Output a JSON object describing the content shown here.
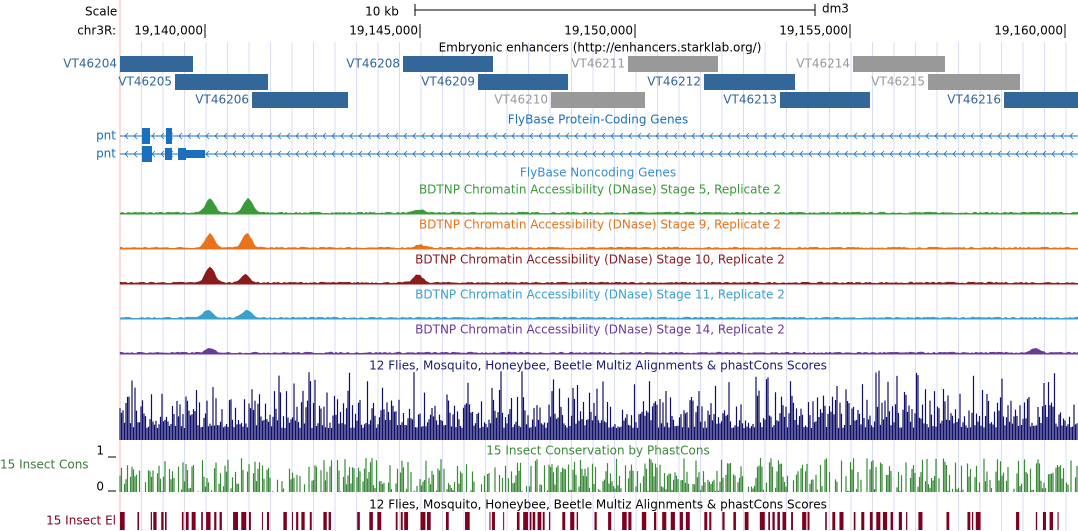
{
  "header": {
    "scale_label": "Scale",
    "ruler_label": "10 kb",
    "assembly": "dm3",
    "chrom_label": "chr3R:",
    "positions": [
      "19,140,000",
      "19,145,000",
      "19,150,000",
      "19,155,000",
      "19,160,000"
    ]
  },
  "tracks": {
    "enhancers": {
      "title": "Embryonic enhancers (http://enhancers.starklab.org/)",
      "items": [
        {
          "label": "VT46204",
          "color": "#336699"
        },
        {
          "label": "VT46205",
          "color": "#336699"
        },
        {
          "label": "VT46206",
          "color": "#336699"
        },
        {
          "label": "VT46208",
          "color": "#336699"
        },
        {
          "label": "VT46209",
          "color": "#336699"
        },
        {
          "label": "VT46210",
          "color": "#999999"
        },
        {
          "label": "VT46211",
          "color": "#999999"
        },
        {
          "label": "VT46212",
          "color": "#336699"
        },
        {
          "label": "VT46213",
          "color": "#336699"
        },
        {
          "label": "VT46214",
          "color": "#999999"
        },
        {
          "label": "VT46215",
          "color": "#999999"
        },
        {
          "label": "VT46216",
          "color": "#336699"
        }
      ]
    },
    "genes": {
      "title": "FlyBase Protein-Coding Genes",
      "items": [
        {
          "label": "pnt"
        },
        {
          "label": "pnt"
        }
      ]
    },
    "noncoding": {
      "title": "FlyBase Noncoding Genes"
    },
    "dnase": [
      {
        "title": "BDTNP Chromatin Accessibility (DNase) Stage 5, Replicate 2",
        "color": "#3a9a3a"
      },
      {
        "title": "BDTNP Chromatin Accessibility (DNase) Stage 9, Replicate 2",
        "color": "#e8731a"
      },
      {
        "title": "BDTNP Chromatin Accessibility (DNase) Stage 10, Replicate 2",
        "color": "#8b1a1a"
      },
      {
        "title": "BDTNP Chromatin Accessibility (DNase) Stage 11, Replicate 2",
        "color": "#3aa0cc"
      },
      {
        "title": "BDTNP Chromatin Accessibility (DNase) Stage 14, Replicate 2",
        "color": "#6a3a9a"
      }
    ],
    "multiz": {
      "title": "12 Flies, Mosquito, Honeybee, Beetle Multiz Alignments & phastCons Scores"
    },
    "phastcons": {
      "title": "15 Insect Conservation by PhastCons",
      "label": "15 Insect Cons",
      "axis_max": "1",
      "axis_min": "0"
    },
    "elements": {
      "title": "12 Flies, Mosquito, Honeybee, Beetle Multiz Alignments & phastCons Scores",
      "label": "15 Insect El"
    }
  }
}
